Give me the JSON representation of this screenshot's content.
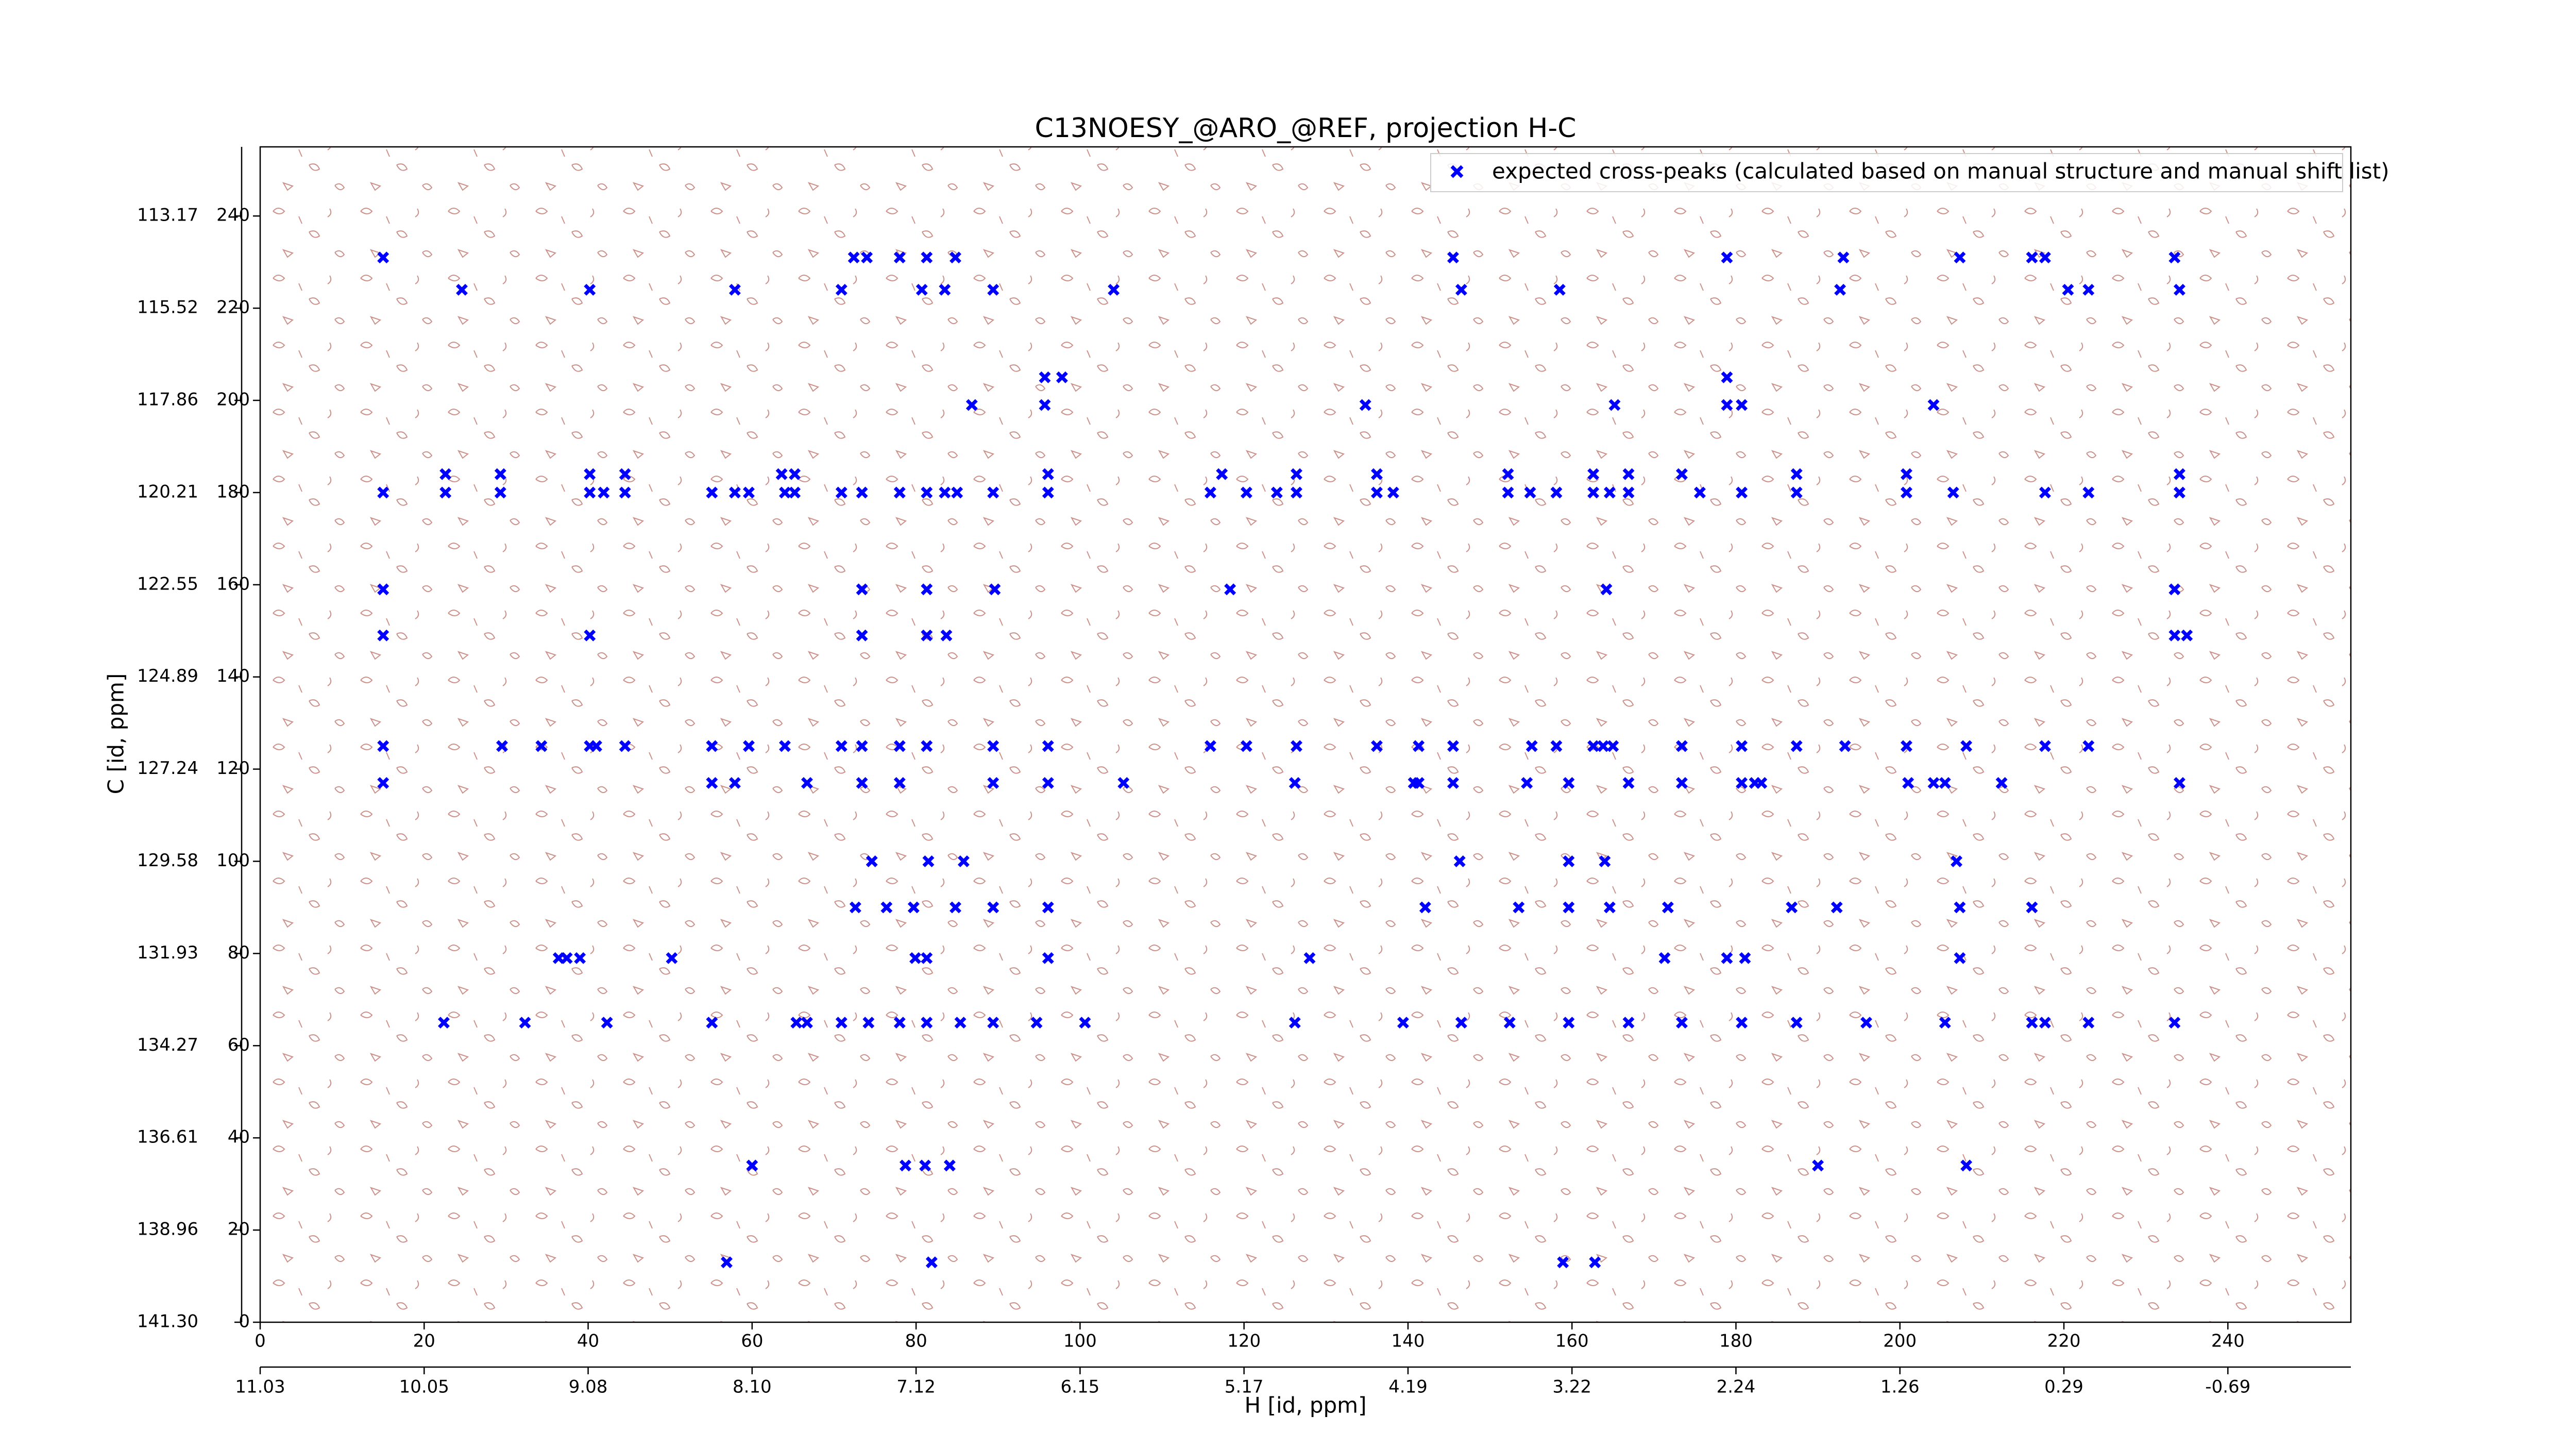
{
  "chart_data": {
    "type": "scatter",
    "title": "C13NOESY_@ARO_@REF, projection H-C",
    "xlabel": "H [id, ppm]",
    "ylabel": "C [id, ppm]",
    "xlim": [
      0,
      255
    ],
    "ylim": [
      0,
      255
    ],
    "xticks": [
      0,
      20,
      40,
      60,
      80,
      100,
      120,
      140,
      160,
      180,
      200,
      220,
      240
    ],
    "yticks": [
      0,
      20,
      40,
      60,
      80,
      100,
      120,
      140,
      160,
      180,
      200,
      220,
      240
    ],
    "x2ticks": [
      {
        "value": 0,
        "label": "11.03"
      },
      {
        "value": 20,
        "label": "10.05"
      },
      {
        "value": 40,
        "label": "9.08"
      },
      {
        "value": 60,
        "label": "8.10"
      },
      {
        "value": 80,
        "label": "7.12"
      },
      {
        "value": 100,
        "label": "6.15"
      },
      {
        "value": 120,
        "label": "5.17"
      },
      {
        "value": 140,
        "label": "4.19"
      },
      {
        "value": 160,
        "label": "3.22"
      },
      {
        "value": 180,
        "label": "2.24"
      },
      {
        "value": 200,
        "label": "1.26"
      },
      {
        "value": 220,
        "label": "0.29"
      },
      {
        "value": 240,
        "label": "-0.69"
      }
    ],
    "y2ticks": [
      {
        "value": 0,
        "label": "141.30"
      },
      {
        "value": 20,
        "label": "138.96"
      },
      {
        "value": 40,
        "label": "136.61"
      },
      {
        "value": 60,
        "label": "134.27"
      },
      {
        "value": 80,
        "label": "131.93"
      },
      {
        "value": 100,
        "label": "129.58"
      },
      {
        "value": 120,
        "label": "127.24"
      },
      {
        "value": 140,
        "label": "124.89"
      },
      {
        "value": 160,
        "label": "122.55"
      },
      {
        "value": 180,
        "label": "120.21"
      },
      {
        "value": 200,
        "label": "117.86"
      },
      {
        "value": 220,
        "label": "115.52"
      },
      {
        "value": 240,
        "label": "113.17"
      }
    ],
    "legend": "upper right",
    "x": [
      15,
      22.6,
      29.3,
      40.2,
      41.9,
      44.5,
      55.1,
      57.9,
      59.6,
      64,
      65.2,
      70.9,
      73.4,
      78,
      81.3,
      83.5,
      85,
      89.4,
      96.1,
      115.9,
      120.3,
      124,
      126.4,
      136.2,
      138.2,
      152.2,
      154.9,
      158.1,
      162.6,
      164.6,
      166.9,
      175.6,
      180.7,
      187.4,
      200.8,
      206.5,
      217.7,
      223,
      234.1,
      22.6,
      29.3,
      40.2,
      44.5,
      63.6,
      65.2,
      96.1,
      117.3,
      126.4,
      136.2,
      152.2,
      162.6,
      166.9,
      173.4,
      187.4,
      200.8,
      234.1,
      15,
      29.5,
      34.3,
      40.2,
      41,
      44.5,
      55.1,
      59.6,
      64,
      70.9,
      73.4,
      78,
      81.3,
      89.4,
      96.1,
      115.9,
      120.3,
      126.4,
      136.2,
      141.3,
      145.5,
      155.1,
      158.1,
      162.6,
      163.8,
      165,
      173.4,
      180.7,
      187.4,
      193.3,
      200.8,
      208.1,
      217.7,
      223,
      15,
      55.1,
      57.9,
      66.7,
      73.4,
      78,
      89.4,
      96.1,
      105.3,
      126.2,
      140.7,
      141.3,
      145.5,
      154.5,
      159.6,
      166.9,
      173.4,
      180.7,
      182.3,
      183.1,
      201,
      204.1,
      205.5,
      212.4,
      234.1,
      22.4,
      32.3,
      42.3,
      55.1,
      65.4,
      66.7,
      70.9,
      74.2,
      78,
      81.3,
      85.4,
      89.4,
      94.7,
      100.6,
      126.2,
      139.4,
      146.5,
      152.4,
      159.6,
      166.9,
      173.4,
      180.7,
      187.4,
      195.9,
      205.5,
      216.1,
      217.7,
      223,
      233.5,
      72.6,
      76.4,
      79.7,
      84.8,
      89.4,
      96.1,
      142.1,
      153.5,
      159.6,
      164.6,
      171.7,
      186.8,
      192.3,
      207.3,
      216.1,
      36.4,
      37.4,
      39,
      50.2,
      79.9,
      81.3,
      96.1,
      128,
      171.3,
      178.9,
      181.1,
      207.3,
      15,
      72.4,
      74,
      78,
      81.3,
      84.8,
      145.5,
      178.9,
      193.1,
      207.3,
      216.1,
      217.7,
      233.5,
      24.6,
      40.2,
      57.9,
      70.9,
      80.7,
      83.5,
      89.4,
      104.1,
      146.5,
      158.5,
      192.7,
      220.5,
      223,
      234.1,
      86.8,
      95.7,
      134.8,
      165.2,
      178.9,
      180.7,
      204.1,
      95.7,
      97.8,
      178.9,
      15,
      73.4,
      81.3,
      89.6,
      118.3,
      164.2,
      233.5,
      15,
      40.2,
      73.4,
      81.3,
      83.7,
      233.5,
      235,
      74.6,
      81.5,
      85.8,
      146.3,
      159.6,
      164,
      206.9,
      60,
      78.7,
      81.1,
      84.1,
      190,
      208.1,
      56.9,
      81.9,
      158.9,
      162.8
    ],
    "series": [
      {
        "name": "expected cross-peaks (calculated based on manual structure and manual shift list)",
        "color": "#0000ff",
        "values": [
          180,
          180,
          180,
          180,
          180,
          180,
          180,
          180,
          180,
          180,
          180,
          180,
          180,
          180,
          180,
          180,
          180,
          180,
          180,
          180,
          180,
          180,
          180,
          180,
          180,
          180,
          180,
          180,
          180,
          180,
          180,
          180,
          180,
          180,
          180,
          180,
          180,
          180,
          180,
          184,
          184,
          184,
          184,
          184,
          184,
          184,
          184,
          184,
          184,
          184,
          184,
          184,
          184,
          184,
          184,
          184,
          125,
          125,
          125,
          125,
          125,
          125,
          125,
          125,
          125,
          125,
          125,
          125,
          125,
          125,
          125,
          125,
          125,
          125,
          125,
          125,
          125,
          125,
          125,
          125,
          125,
          125,
          125,
          125,
          125,
          125,
          125,
          125,
          125,
          125,
          117,
          117,
          117,
          117,
          117,
          117,
          117,
          117,
          117,
          117,
          117,
          117,
          117,
          117,
          117,
          117,
          117,
          117,
          117,
          117,
          117,
          117,
          117,
          117,
          117,
          65,
          65,
          65,
          65,
          65,
          65,
          65,
          65,
          65,
          65,
          65,
          65,
          65,
          65,
          65,
          65,
          65,
          65,
          65,
          65,
          65,
          65,
          65,
          65,
          65,
          65,
          65,
          65,
          65,
          90,
          90,
          90,
          90,
          90,
          90,
          90,
          90,
          90,
          90,
          90,
          90,
          90,
          90,
          90,
          79,
          79,
          79,
          79,
          79,
          79,
          79,
          79,
          79,
          79,
          79,
          79,
          231,
          231,
          231,
          231,
          231,
          231,
          231,
          231,
          231,
          231,
          231,
          231,
          231,
          224,
          224,
          224,
          224,
          224,
          224,
          224,
          224,
          224,
          224,
          224,
          224,
          224,
          224,
          199,
          199,
          199,
          199,
          199,
          199,
          199,
          205,
          205,
          205,
          159,
          159,
          159,
          159,
          159,
          159,
          159,
          149,
          149,
          149,
          149,
          149,
          149,
          149,
          100,
          100,
          100,
          100,
          100,
          100,
          100,
          34,
          34,
          34,
          34,
          34,
          34,
          13,
          13,
          13,
          13
        ]
      }
    ]
  }
}
